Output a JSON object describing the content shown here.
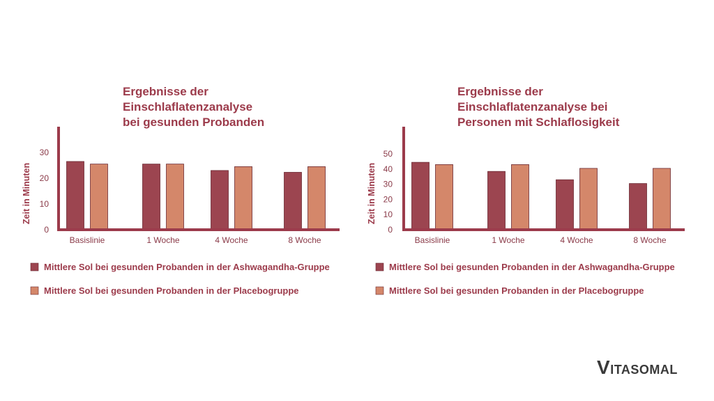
{
  "colors": {
    "accent": "#9c3b4b",
    "ashwagandha": "#9c4550",
    "placebo": "#d4876a",
    "bar_stroke": "#6b2a33"
  },
  "brand": {
    "first": "V",
    "rest": "ITASOMAL"
  },
  "chart_data": [
    {
      "type": "bar",
      "title": [
        "Ergebnisse der",
        "Einschlaflatenzanalyse",
        "bei gesunden Probanden"
      ],
      "ylabel": "Zeit in Minuten",
      "xlabel": "",
      "categories": [
        "Basislinie",
        "1 Woche",
        "4 Woche",
        "8 Woche"
      ],
      "ylim": [
        0,
        40
      ],
      "yticks": [
        0,
        10,
        20,
        30
      ],
      "series": [
        {
          "name": "Mittlere Sol bei gesunden Probanden in der Ashwagandha-Gruppe",
          "values": [
            26.5,
            25.5,
            23,
            22.3
          ]
        },
        {
          "name": "Mittlere Sol bei gesunden Probanden in der Placebogruppe",
          "values": [
            25.5,
            25.5,
            24.5,
            24.5
          ]
        }
      ],
      "grid": false,
      "legend": "bottom"
    },
    {
      "type": "bar",
      "title": [
        "Ergebnisse der",
        "Einschlaflatenzanalyse bei",
        "Personen mit Schlaflosigkeit"
      ],
      "ylabel": "Zeit in Minuten",
      "xlabel": "",
      "categories": [
        "Basislinie",
        "1 Woche",
        "4 Woche",
        "8 Woche"
      ],
      "ylim": [
        0,
        68
      ],
      "yticks": [
        0,
        10,
        20,
        30,
        40,
        50
      ],
      "series": [
        {
          "name": "Mittlere Sol bei gesunden Probanden in der Ashwagandha-Gruppe",
          "values": [
            44.5,
            38.5,
            33,
            30.5
          ]
        },
        {
          "name": "Mittlere Sol bei gesunden Probanden in der Placebogruppe",
          "values": [
            43,
            43,
            40.5,
            40.5
          ]
        }
      ],
      "grid": false,
      "legend": "bottom"
    }
  ]
}
